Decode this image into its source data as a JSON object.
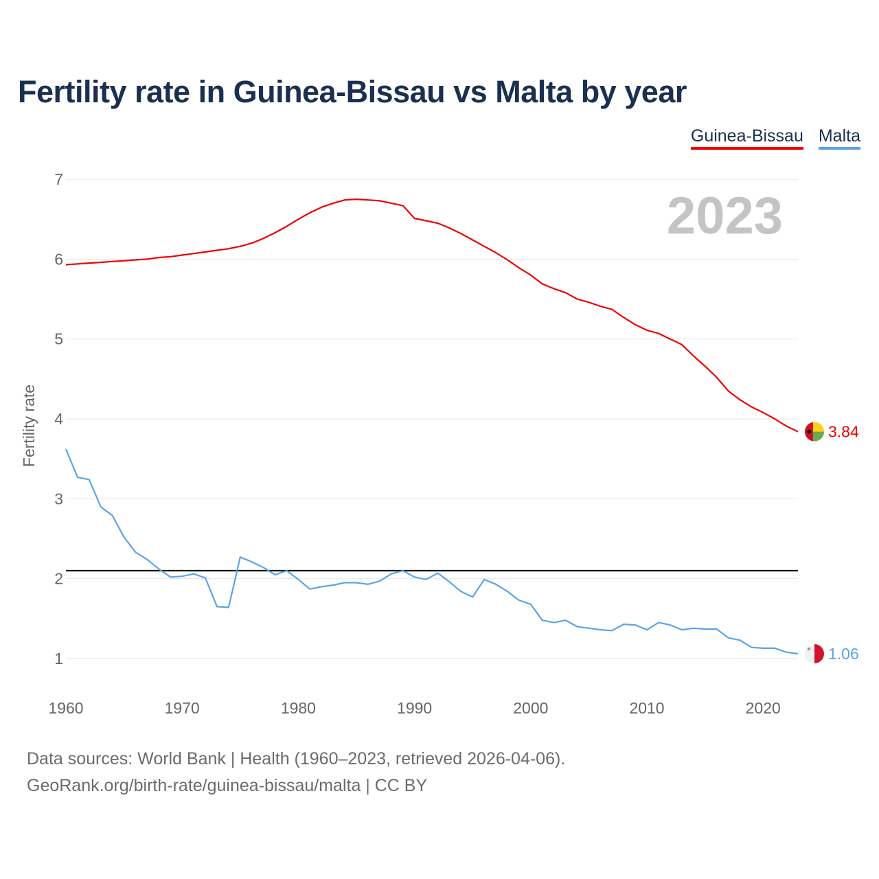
{
  "chart_data": {
    "type": "line",
    "title": "Fertility rate in Guinea-Bissau vs Malta by year",
    "ylabel": "Fertility rate",
    "xlabel": "",
    "xlim": [
      1960,
      2023
    ],
    "ylim": [
      0.5,
      7.2
    ],
    "xticks": [
      1960,
      1970,
      1980,
      1990,
      2000,
      2010,
      2020
    ],
    "yticks": [
      1,
      2,
      3,
      4,
      5,
      6,
      7
    ],
    "year_label": "2023",
    "reference_line": 2.1,
    "x": [
      1960,
      1961,
      1962,
      1963,
      1964,
      1965,
      1966,
      1967,
      1968,
      1969,
      1970,
      1971,
      1972,
      1973,
      1974,
      1975,
      1976,
      1977,
      1978,
      1979,
      1980,
      1981,
      1982,
      1983,
      1984,
      1985,
      1986,
      1987,
      1988,
      1989,
      1990,
      1991,
      1992,
      1993,
      1994,
      1995,
      1996,
      1997,
      1998,
      1999,
      2000,
      2001,
      2002,
      2003,
      2004,
      2005,
      2006,
      2007,
      2008,
      2009,
      2010,
      2011,
      2012,
      2013,
      2014,
      2015,
      2016,
      2017,
      2018,
      2019,
      2020,
      2021,
      2022,
      2023
    ],
    "series": [
      {
        "name": "Guinea-Bissau",
        "color": "#ee0000",
        "end_label": "3.84",
        "flag": "guinea-bissau-flag-icon",
        "values": [
          5.93,
          5.94,
          5.95,
          5.96,
          5.97,
          5.98,
          5.99,
          6.0,
          6.02,
          6.03,
          6.05,
          6.07,
          6.09,
          6.11,
          6.13,
          6.16,
          6.2,
          6.26,
          6.33,
          6.41,
          6.5,
          6.58,
          6.65,
          6.7,
          6.74,
          6.75,
          6.74,
          6.73,
          6.7,
          6.67,
          6.51,
          6.48,
          6.45,
          6.39,
          6.32,
          6.24,
          6.16,
          6.08,
          5.99,
          5.89,
          5.8,
          5.69,
          5.63,
          5.58,
          5.5,
          5.46,
          5.41,
          5.37,
          5.27,
          5.18,
          5.11,
          5.07,
          5.0,
          4.93,
          4.79,
          4.66,
          4.52,
          4.35,
          4.24,
          4.15,
          4.08,
          4.0,
          3.91,
          3.84
        ]
      },
      {
        "name": "Malta",
        "color": "#5ba3e6",
        "end_label": "1.06",
        "flag": "malta-flag-icon",
        "values": [
          3.62,
          3.27,
          3.24,
          2.9,
          2.79,
          2.52,
          2.33,
          2.24,
          2.12,
          2.02,
          2.03,
          2.06,
          2.01,
          1.65,
          1.64,
          2.27,
          2.21,
          2.14,
          2.05,
          2.1,
          1.99,
          1.87,
          1.9,
          1.92,
          1.95,
          1.95,
          1.93,
          1.97,
          2.06,
          2.1,
          2.02,
          1.99,
          2.07,
          1.96,
          1.84,
          1.77,
          1.99,
          1.93,
          1.84,
          1.73,
          1.68,
          1.48,
          1.45,
          1.48,
          1.4,
          1.38,
          1.36,
          1.35,
          1.43,
          1.42,
          1.36,
          1.45,
          1.42,
          1.36,
          1.38,
          1.37,
          1.37,
          1.26,
          1.23,
          1.14,
          1.13,
          1.13,
          1.08,
          1.06
        ]
      }
    ]
  },
  "legend": {
    "items": [
      "Guinea-Bissau",
      "Malta"
    ]
  },
  "source": {
    "line1": "Data sources: World Bank | Health (1960–2023, retrieved 2026-04-06).",
    "line2": "GeoRank.org/birth-rate/guinea-bissau/malta | CC BY"
  }
}
